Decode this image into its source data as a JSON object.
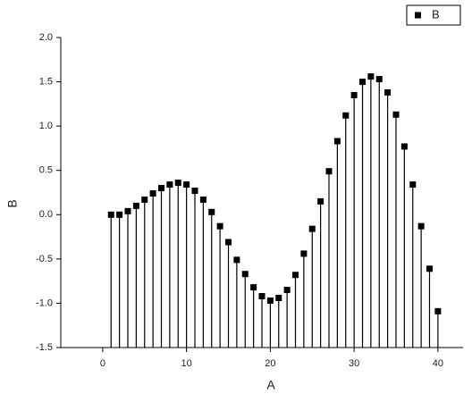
{
  "chart_data": {
    "type": "stem",
    "x_label": "A",
    "y_label": "B",
    "x": [
      1,
      2,
      3,
      4,
      5,
      6,
      7,
      8,
      9,
      10,
      11,
      12,
      13,
      14,
      15,
      16,
      17,
      18,
      19,
      20,
      21,
      22,
      23,
      24,
      25,
      26,
      27,
      28,
      29,
      30,
      31,
      32,
      33,
      34,
      35,
      36,
      37,
      38,
      39,
      40
    ],
    "series": [
      {
        "name": "B",
        "color": "#000000",
        "values": [
          0.0,
          0.0,
          0.04,
          0.1,
          0.17,
          0.24,
          0.3,
          0.34,
          0.36,
          0.34,
          0.27,
          0.17,
          0.03,
          -0.13,
          -0.31,
          -0.51,
          -0.67,
          -0.82,
          -0.92,
          -0.97,
          -0.94,
          -0.85,
          -0.68,
          -0.44,
          -0.16,
          0.15,
          0.49,
          0.83,
          1.12,
          1.35,
          1.5,
          1.56,
          1.53,
          1.38,
          1.13,
          0.77,
          0.34,
          -0.13,
          -0.61,
          -1.09
        ]
      }
    ],
    "xlim": [
      -5,
      43
    ],
    "ylim": [
      -1.5,
      2.0
    ],
    "xticks": [
      0,
      10,
      20,
      30,
      40
    ],
    "yticks": [
      {
        "value": -1.5,
        "label": "-1.5"
      },
      {
        "value": -1.0,
        "label": "-1.0"
      },
      {
        "value": -0.5,
        "label": "-0.5"
      },
      {
        "value": 0.0,
        "label": "0.0"
      },
      {
        "value": 0.5,
        "label": "0.5"
      },
      {
        "value": 1.0,
        "label": "1.0"
      },
      {
        "value": 1.5,
        "label": "1.5"
      },
      {
        "value": 2.0,
        "label": "2.0"
      }
    ],
    "legend": "top-right"
  }
}
